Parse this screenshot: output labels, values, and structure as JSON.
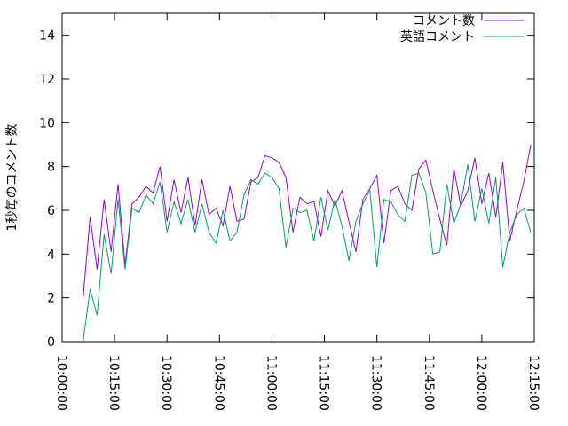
{
  "chart_data": {
    "type": "line",
    "ylabel": "1秒毎のコメント数",
    "x": [
      "10:06:00",
      "10:08:00",
      "10:10:00",
      "10:12:00",
      "10:14:00",
      "10:16:00",
      "10:18:00",
      "10:20:00",
      "10:22:00",
      "10:24:00",
      "10:26:00",
      "10:28:00",
      "10:30:00",
      "10:32:00",
      "10:34:00",
      "10:36:00",
      "10:38:00",
      "10:40:00",
      "10:42:00",
      "10:44:00",
      "10:46:00",
      "10:48:00",
      "10:50:00",
      "10:52:00",
      "10:54:00",
      "10:56:00",
      "10:58:00",
      "11:00:00",
      "11:02:00",
      "11:04:00",
      "11:06:00",
      "11:08:00",
      "11:10:00",
      "11:12:00",
      "11:14:00",
      "11:16:00",
      "11:18:00",
      "11:20:00",
      "11:22:00",
      "11:24:00",
      "11:26:00",
      "11:28:00",
      "11:30:00",
      "11:32:00",
      "11:34:00",
      "11:36:00",
      "11:38:00",
      "11:40:00",
      "11:42:00",
      "11:44:00",
      "11:46:00",
      "11:48:00",
      "11:50:00",
      "11:52:00",
      "11:54:00",
      "11:56:00",
      "11:58:00",
      "12:00:00",
      "12:02:00",
      "12:04:00",
      "12:06:00",
      "12:08:00",
      "12:10:00",
      "12:12:00",
      "12:14:00"
    ],
    "series": [
      {
        "name": "コメント数",
        "color": "#9400d3",
        "values": [
          2.0,
          5.7,
          3.3,
          6.5,
          4.1,
          7.2,
          3.5,
          6.3,
          6.6,
          7.1,
          6.8,
          8.0,
          5.5,
          7.4,
          5.9,
          7.5,
          5.3,
          7.4,
          5.8,
          6.1,
          5.3,
          7.1,
          5.5,
          5.6,
          7.3,
          7.5,
          8.5,
          8.4,
          8.2,
          7.5,
          5.0,
          6.6,
          6.3,
          6.4,
          4.8,
          6.9,
          6.2,
          6.9,
          5.5,
          4.1,
          6.5,
          7.0,
          7.6,
          4.5,
          6.9,
          7.1,
          6.3,
          6.0,
          7.9,
          8.3,
          6.9,
          5.6,
          4.4,
          7.9,
          6.2,
          6.9,
          8.4,
          6.3,
          7.7,
          5.7,
          8.2,
          4.6,
          6.0,
          7.3,
          9.0
        ]
      },
      {
        "name": "英語コメント",
        "color": "#009e73",
        "values": [
          0.0,
          2.4,
          1.2,
          4.9,
          3.1,
          6.5,
          3.3,
          6.1,
          5.9,
          6.7,
          6.3,
          7.3,
          5.0,
          6.4,
          5.4,
          6.5,
          5.0,
          6.3,
          5.0,
          4.5,
          6.0,
          4.6,
          5.0,
          6.7,
          7.4,
          7.2,
          7.7,
          7.5,
          7.0,
          4.3,
          6.1,
          5.9,
          6.0,
          4.6,
          6.6,
          5.1,
          6.5,
          5.3,
          3.7,
          5.5,
          6.3,
          6.9,
          3.4,
          6.5,
          6.4,
          5.8,
          5.5,
          7.6,
          7.7,
          6.8,
          4.0,
          4.1,
          7.2,
          5.4,
          6.3,
          8.1,
          5.5,
          7.0,
          5.4,
          7.5,
          3.4,
          5.0,
          5.8,
          6.1,
          5.0
        ]
      }
    ],
    "xlim": [
      "10:00:00",
      "12:15:00"
    ],
    "xticks": [
      "10:00:00",
      "10:15:00",
      "10:30:00",
      "10:45:00",
      "11:00:00",
      "11:15:00",
      "11:30:00",
      "11:45:00",
      "12:00:00",
      "12:15:00"
    ],
    "ylim": [
      0,
      15
    ],
    "yticks": [
      0,
      2,
      4,
      6,
      8,
      10,
      12,
      14
    ],
    "legend": "top-right"
  }
}
